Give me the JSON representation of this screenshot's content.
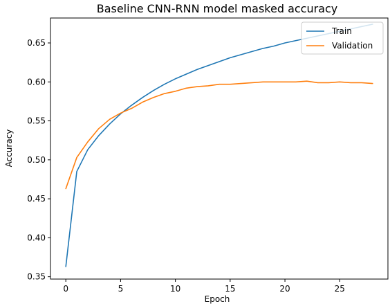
{
  "chart_data": {
    "type": "line",
    "title": "Baseline CNN-RNN model masked accuracy",
    "xlabel": "Epoch",
    "ylabel": "Accuracy",
    "xlim": [
      -1.4,
      29.4
    ],
    "ylim": [
      0.347,
      0.682
    ],
    "xticks": [
      0,
      5,
      10,
      15,
      20,
      25
    ],
    "xtick_labels": [
      "0",
      "5",
      "10",
      "15",
      "20",
      "25"
    ],
    "yticks": [
      0.35,
      0.4,
      0.45,
      0.5,
      0.55,
      0.6,
      0.65
    ],
    "ytick_labels": [
      "0.35",
      "0.40",
      "0.45",
      "0.50",
      "0.55",
      "0.60",
      "0.65"
    ],
    "grid": false,
    "legend_position": "upper right",
    "x": [
      0,
      1,
      2,
      3,
      4,
      5,
      6,
      7,
      8,
      9,
      10,
      11,
      12,
      13,
      14,
      15,
      16,
      17,
      18,
      19,
      20,
      21,
      22,
      23,
      24,
      25,
      26,
      27,
      28
    ],
    "series": [
      {
        "name": "Train",
        "color": "#1f77b4",
        "values": [
          0.363,
          0.485,
          0.513,
          0.531,
          0.546,
          0.559,
          0.57,
          0.58,
          0.589,
          0.597,
          0.604,
          0.61,
          0.616,
          0.621,
          0.626,
          0.631,
          0.635,
          0.639,
          0.643,
          0.646,
          0.65,
          0.653,
          0.656,
          0.659,
          0.662,
          0.665,
          0.668,
          0.671,
          0.674
        ]
      },
      {
        "name": "Validation",
        "color": "#ff7f0e",
        "values": [
          0.463,
          0.503,
          0.523,
          0.54,
          0.552,
          0.56,
          0.566,
          0.574,
          0.58,
          0.585,
          0.588,
          0.592,
          0.594,
          0.595,
          0.597,
          0.597,
          0.598,
          0.599,
          0.6,
          0.6,
          0.6,
          0.6,
          0.601,
          0.599,
          0.599,
          0.6,
          0.599,
          0.599,
          0.598
        ]
      }
    ]
  }
}
